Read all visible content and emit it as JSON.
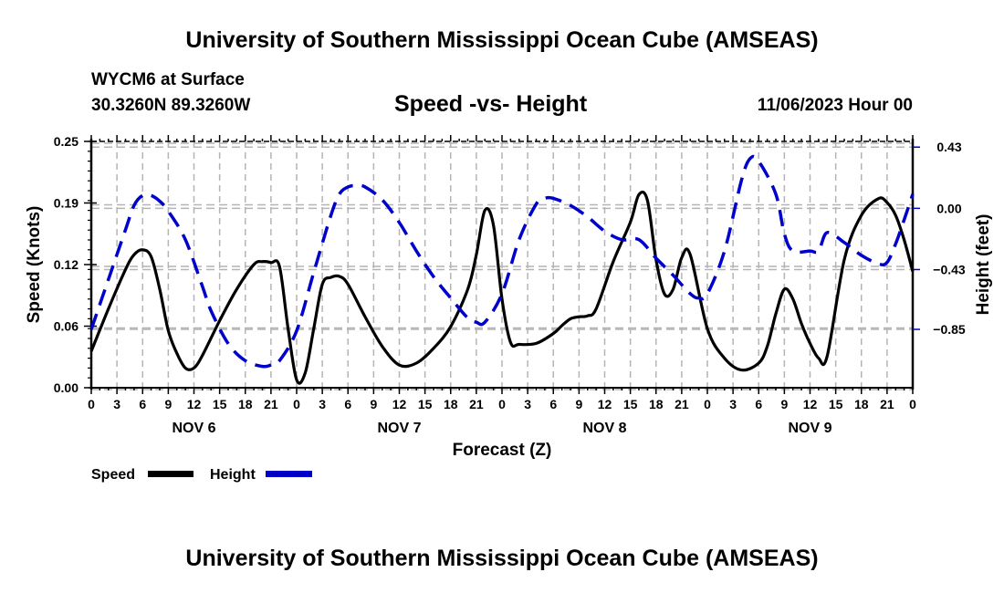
{
  "header": {
    "main_title": "University of Southern Mississippi Ocean Cube (AMSEAS)",
    "station": "WYCM6 at Surface",
    "coords": "30.3260N  89.3260W",
    "chart_title": "Speed -vs- Height",
    "datetime": "11/06/2023 Hour 00"
  },
  "footer": {
    "title": "University of Southern Mississippi Ocean Cube (AMSEAS)"
  },
  "colors": {
    "speed": "#000000",
    "height": "#0000cc",
    "grid": "#b4b4b4"
  },
  "chart_data": {
    "type": "line",
    "title": "Speed -vs- Height",
    "xlabel": "Forecast (Z)",
    "ylabel": "Speed (Knots)",
    "y2label": "Height (feet)",
    "xlim": [
      0,
      96
    ],
    "ylim": [
      0,
      0.25
    ],
    "y2lim": [
      -1.26,
      0.47
    ],
    "grid": true,
    "x_ticks": [
      0,
      3,
      6,
      9,
      12,
      15,
      18,
      21,
      24,
      27,
      30,
      33,
      36,
      39,
      42,
      45,
      48,
      51,
      54,
      57,
      60,
      63,
      66,
      69,
      72,
      75,
      78,
      81,
      84,
      87,
      90,
      93,
      96
    ],
    "x_tick_labels": [
      "0",
      "3",
      "6",
      "9",
      "12",
      "15",
      "18",
      "21",
      "0",
      "3",
      "6",
      "9",
      "12",
      "15",
      "18",
      "21",
      "0",
      "3",
      "6",
      "9",
      "12",
      "15",
      "18",
      "21",
      "0",
      "3",
      "6",
      "9",
      "12",
      "15",
      "18",
      "21",
      "0"
    ],
    "day_labels": [
      {
        "label": "NOV 6",
        "hour": 12
      },
      {
        "label": "NOV 7",
        "hour": 36
      },
      {
        "label": "NOV 8",
        "hour": 60
      },
      {
        "label": "NOV 9",
        "hour": 84
      }
    ],
    "y_ticks": [
      0.0,
      0.0625,
      0.125,
      0.1875,
      0.25
    ],
    "y_tick_labels": [
      "0.00",
      "0.06",
      "0.12",
      "0.19",
      "0.25"
    ],
    "y2_ticks": [
      0.43,
      0.0,
      -0.43,
      -0.85
    ],
    "y2_tick_labels": [
      "0.43",
      "0.00",
      "−0.43",
      "−0.85"
    ],
    "legend": [
      {
        "name": "Speed",
        "style": "solid"
      },
      {
        "name": "Height",
        "style": "dashed"
      }
    ],
    "legend_position": "bottom-left",
    "series": [
      {
        "name": "Speed",
        "axis": "left",
        "units": "knots",
        "x": [
          0,
          2,
          4,
          5,
          6,
          7,
          8,
          9,
          10,
          11,
          12,
          13,
          15,
          17,
          19,
          20,
          21,
          22,
          23,
          24,
          25,
          26,
          27,
          28,
          29,
          30,
          32,
          34,
          36,
          38,
          40,
          42,
          44,
          45,
          46,
          47,
          48,
          49,
          50,
          52,
          54,
          55,
          56,
          57,
          58,
          59,
          61,
          63,
          64,
          65,
          66,
          67,
          68,
          69,
          70,
          72,
          74,
          76,
          78,
          79,
          80,
          81,
          82,
          83,
          84,
          85,
          86,
          88,
          90,
          92,
          93,
          94,
          95,
          96
        ],
        "values": [
          0.037,
          0.08,
          0.12,
          0.135,
          0.14,
          0.133,
          0.1,
          0.058,
          0.035,
          0.02,
          0.02,
          0.033,
          0.068,
          0.1,
          0.125,
          0.128,
          0.127,
          0.123,
          0.06,
          0.008,
          0.015,
          0.06,
          0.105,
          0.112,
          0.113,
          0.105,
          0.072,
          0.042,
          0.023,
          0.025,
          0.04,
          0.062,
          0.1,
          0.135,
          0.18,
          0.165,
          0.09,
          0.046,
          0.044,
          0.045,
          0.055,
          0.063,
          0.07,
          0.072,
          0.073,
          0.08,
          0.128,
          0.168,
          0.196,
          0.19,
          0.13,
          0.095,
          0.1,
          0.132,
          0.135,
          0.06,
          0.03,
          0.018,
          0.025,
          0.042,
          0.075,
          0.1,
          0.09,
          0.065,
          0.045,
          0.03,
          0.032,
          0.13,
          0.175,
          0.192,
          0.188,
          0.175,
          0.15,
          0.118
        ]
      },
      {
        "name": "Height",
        "axis": "right",
        "units": "feet",
        "x": [
          0,
          2,
          4,
          5,
          6,
          7,
          8,
          9,
          11,
          13,
          14,
          16,
          18,
          20,
          21,
          22,
          24,
          26,
          28,
          29,
          30,
          31,
          32,
          34,
          36,
          38,
          40,
          42,
          44,
          45,
          46,
          48,
          50,
          52,
          53,
          54,
          56,
          58,
          60,
          62,
          64,
          66,
          68,
          70,
          71,
          72,
          74,
          76,
          77,
          78,
          80,
          81,
          82,
          84,
          85,
          86,
          88,
          90,
          92,
          93,
          94,
          95,
          96
        ],
        "values": [
          -0.85,
          -0.5,
          -0.15,
          0.02,
          0.09,
          0.09,
          0.05,
          -0.02,
          -0.22,
          -0.55,
          -0.72,
          -0.95,
          -1.07,
          -1.11,
          -1.1,
          -1.07,
          -0.86,
          -0.45,
          -0.05,
          0.1,
          0.15,
          0.16,
          0.15,
          0.06,
          -0.1,
          -0.3,
          -0.48,
          -0.63,
          -0.77,
          -0.8,
          -0.8,
          -0.6,
          -0.22,
          0.03,
          0.07,
          0.07,
          0.02,
          -0.06,
          -0.16,
          -0.22,
          -0.22,
          -0.35,
          -0.47,
          -0.6,
          -0.63,
          -0.6,
          -0.3,
          0.2,
          0.35,
          0.33,
          0.1,
          -0.18,
          -0.3,
          -0.3,
          -0.3,
          -0.17,
          -0.24,
          -0.33,
          -0.39,
          -0.38,
          -0.25,
          -0.08,
          0.1
        ]
      }
    ]
  }
}
